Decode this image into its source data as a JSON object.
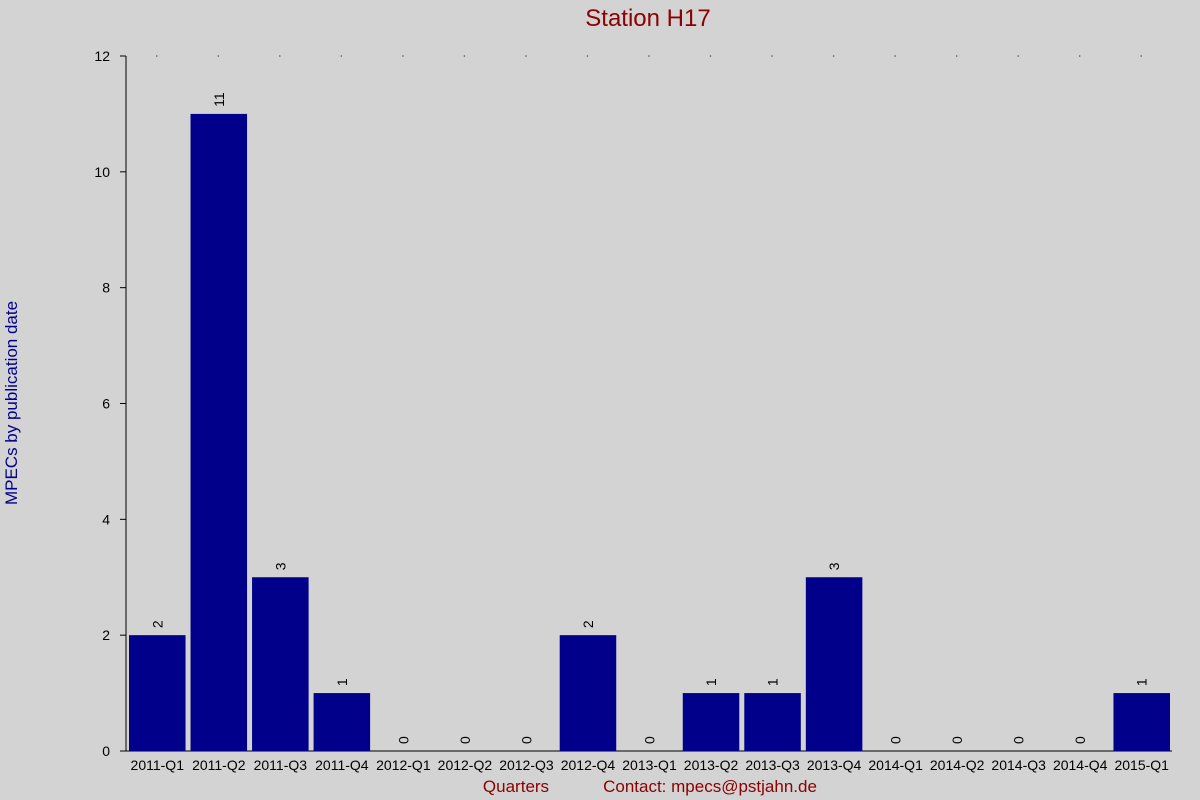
{
  "chart_data": {
    "type": "bar",
    "title": "Station H17",
    "xlabel": "Quarters",
    "ylabel": "MPECs by publication date",
    "contact": "Contact: mpecs@pstjahn.de",
    "categories": [
      "2011-Q1",
      "2011-Q2",
      "2011-Q3",
      "2011-Q4",
      "2012-Q1",
      "2012-Q2",
      "2012-Q3",
      "2012-Q4",
      "2013-Q1",
      "2013-Q2",
      "2013-Q3",
      "2013-Q4",
      "2014-Q1",
      "2014-Q2",
      "2014-Q3",
      "2014-Q4",
      "2015-Q1"
    ],
    "values": [
      2,
      11,
      3,
      1,
      0,
      0,
      0,
      2,
      0,
      1,
      1,
      3,
      0,
      0,
      0,
      0,
      1
    ],
    "ylim": [
      0,
      12
    ],
    "yticks": [
      0,
      2,
      4,
      6,
      8,
      10,
      12
    ],
    "grid": false,
    "colors": {
      "bar": "#00008b",
      "title": "#8b0000",
      "ylabel": "#00008b",
      "xlabel": "#8b0000",
      "background": "#d3d3d3"
    }
  }
}
